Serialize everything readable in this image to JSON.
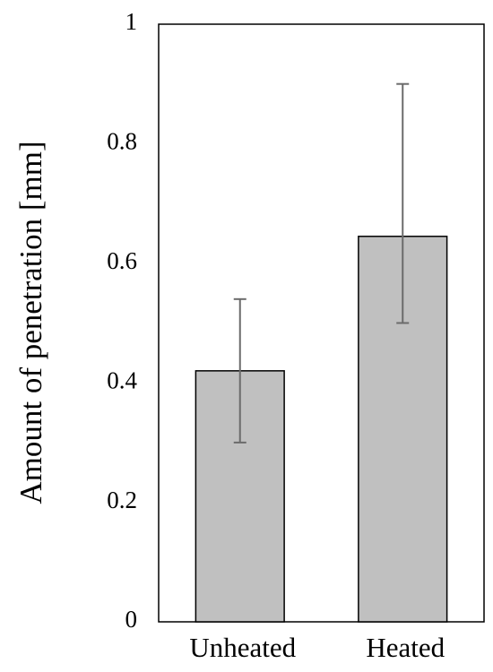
{
  "chart_data": {
    "type": "bar",
    "ylabel": "Amount of penetration [mm]",
    "categories": [
      "Unheated",
      "Heated"
    ],
    "values": [
      0.42,
      0.645
    ],
    "error_minus": [
      0.12,
      0.145
    ],
    "error_plus": [
      0.12,
      0.255
    ],
    "color": "#c0c0c0",
    "error_color": "#6b6b6b",
    "ylim": [
      0,
      1
    ],
    "yticks": [
      0,
      0.2,
      0.4,
      0.6,
      0.8,
      1
    ],
    "grid": false
  }
}
